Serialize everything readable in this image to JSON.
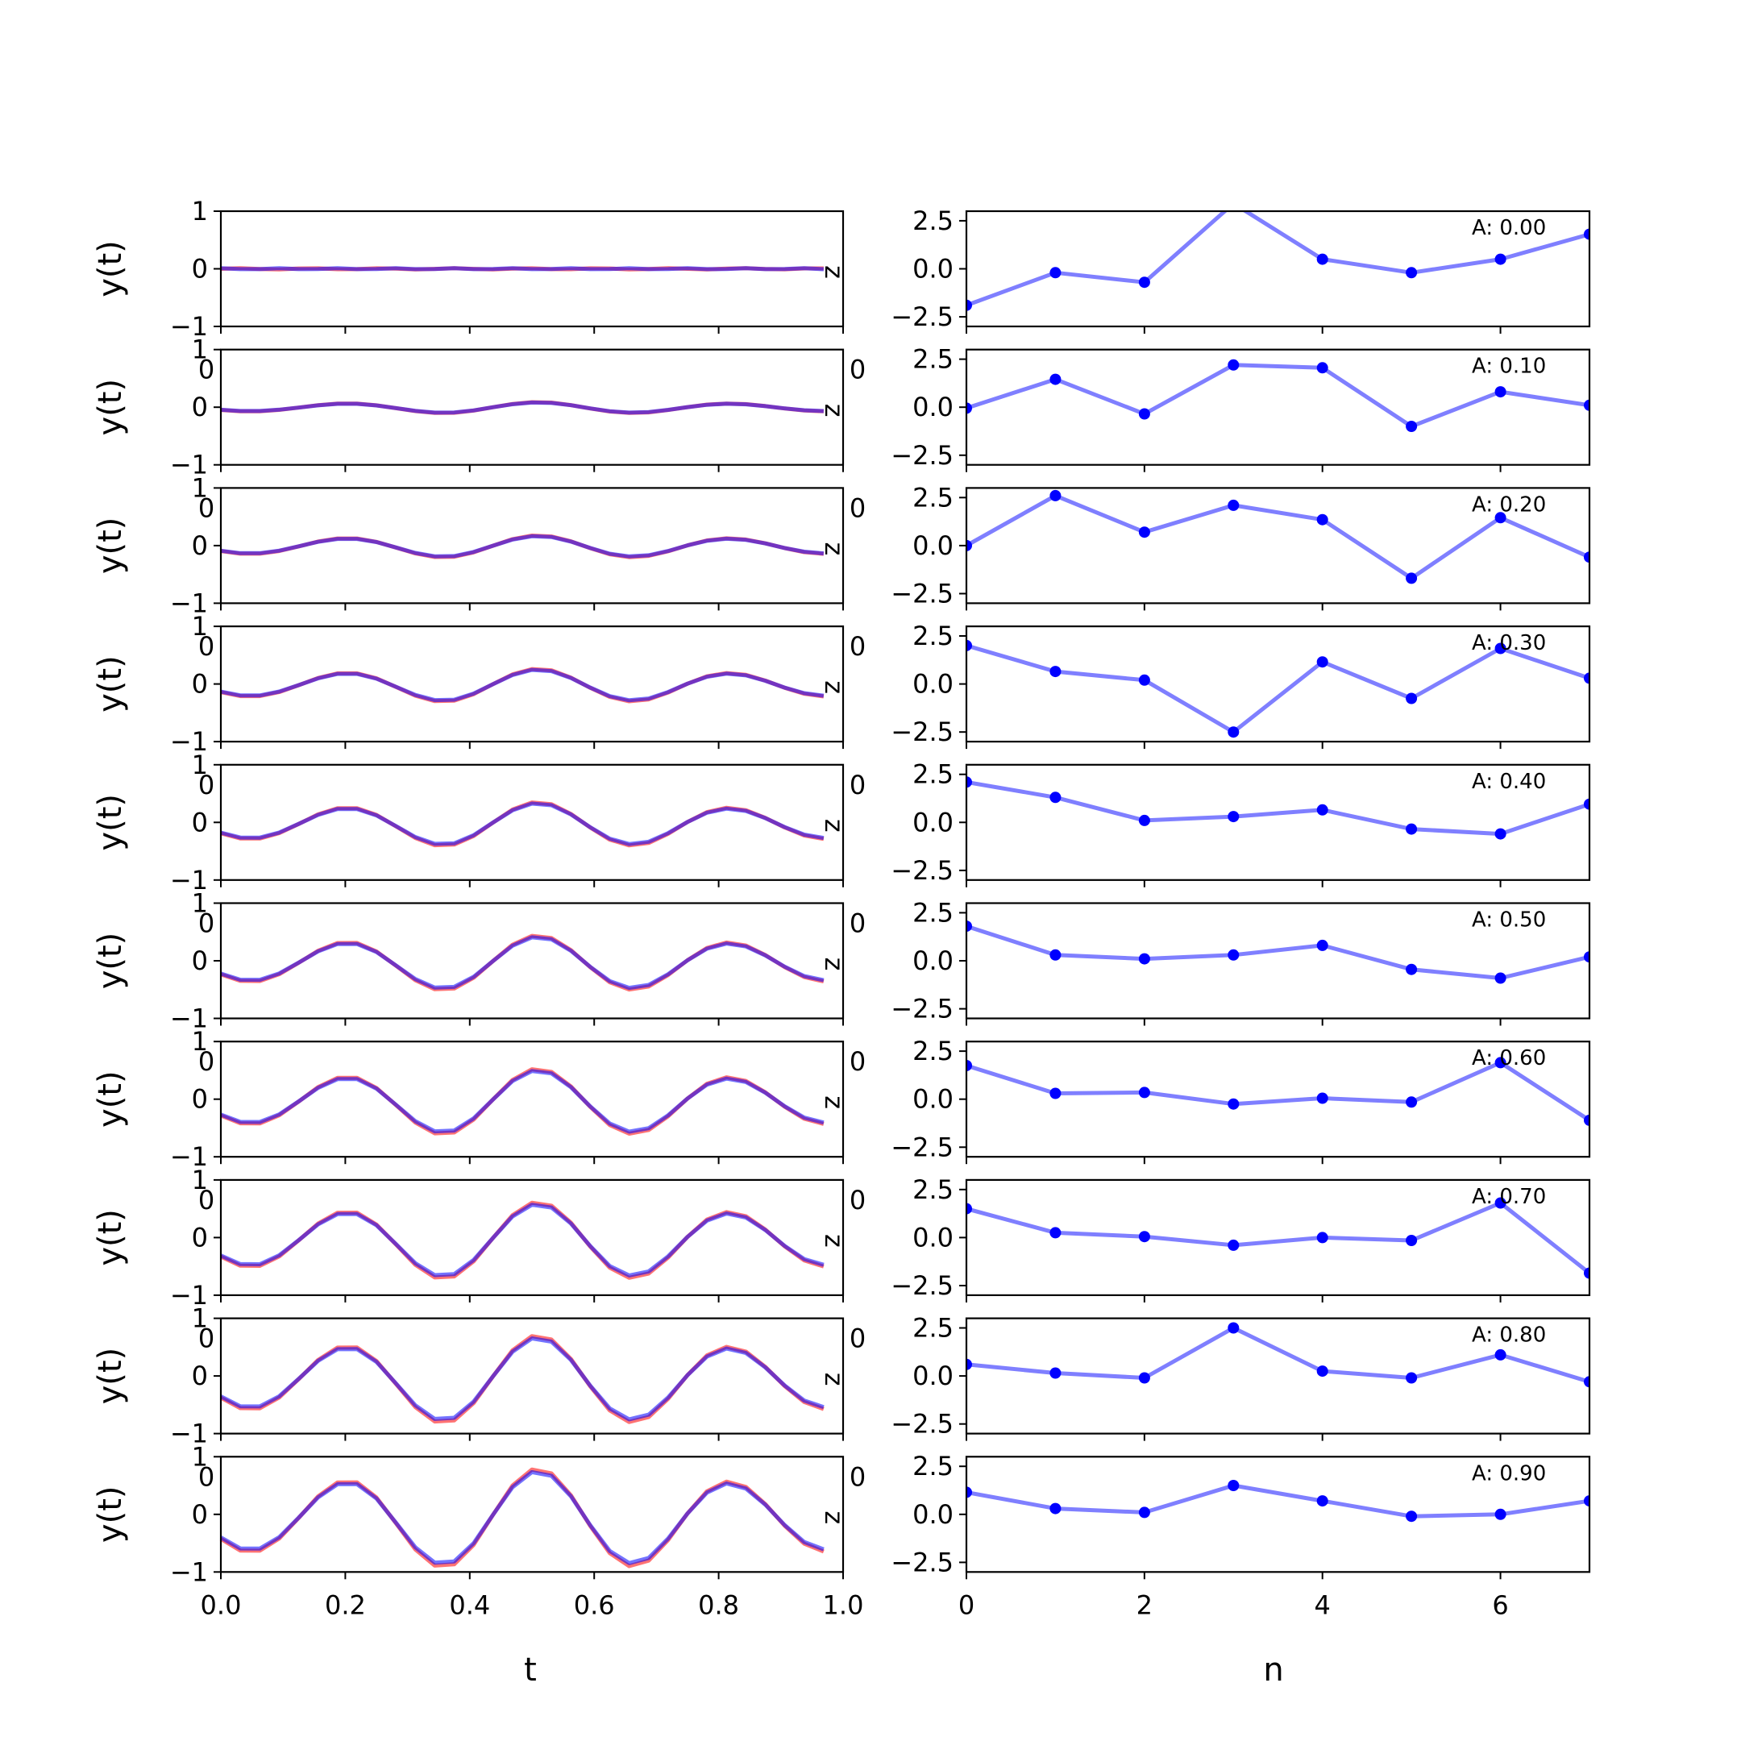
{
  "chart_data": {
    "type": "line",
    "layout": "10 rows x 2 columns of subplots",
    "left_column": {
      "xlabel": "t",
      "ylabel": "y(t)",
      "xlim": [
        0,
        1
      ],
      "ylim": [
        -1,
        1
      ],
      "x_ticks": [
        0.0,
        0.2,
        0.4,
        0.6,
        0.8,
        1.0
      ],
      "x_tick_labels": [
        "0.0",
        "0.2",
        "0.4",
        "0.6",
        "0.8",
        "1.0"
      ],
      "y_ticks": [
        -1,
        0,
        1
      ],
      "y_tick_labels": [
        "−1",
        "0",
        "1"
      ],
      "series_colors": [
        "#ff0000",
        "#0000ff"
      ],
      "side_glyph": "z",
      "stray_tick_text": "0",
      "signal_shape": "A * (0.3*sin(2*pi*3.3*t - 1.12) + 0.64*sin(2*pi*3.3*t)^...) approximated, 32 samples",
      "panels": [
        {
          "A": 0.0
        },
        {
          "A": 0.1
        },
        {
          "A": 0.2
        },
        {
          "A": 0.3
        },
        {
          "A": 0.4
        },
        {
          "A": 0.5
        },
        {
          "A": 0.6
        },
        {
          "A": 0.7
        },
        {
          "A": 0.8
        },
        {
          "A": 0.9
        }
      ]
    },
    "right_column": {
      "xlabel": "n",
      "xlim": [
        0,
        7
      ],
      "ylim": [
        -3,
        3
      ],
      "x_ticks": [
        0,
        2,
        4,
        6
      ],
      "x_tick_labels": [
        "0",
        "2",
        "4",
        "6"
      ],
      "y_ticks": [
        2.5,
        0.0,
        -2.5
      ],
      "y_tick_labels": [
        "2.5",
        "0.0",
        "−2.5"
      ],
      "series_color": "#0000ff",
      "panels": [
        {
          "label": "A: 0.00",
          "values": [
            -1.9,
            -0.2,
            -0.7,
            3.4,
            0.5,
            -0.2,
            0.5,
            1.8
          ]
        },
        {
          "label": "A: 0.10",
          "values": [
            -0.05,
            1.45,
            -0.35,
            2.2,
            2.05,
            -1.0,
            0.8,
            0.1
          ]
        },
        {
          "label": "A: 0.20",
          "values": [
            0.0,
            2.6,
            0.7,
            2.1,
            1.35,
            -1.7,
            1.45,
            -0.6
          ]
        },
        {
          "label": "A: 0.30",
          "values": [
            2.0,
            0.65,
            0.2,
            -2.5,
            1.15,
            -0.75,
            1.85,
            0.3
          ]
        },
        {
          "label": "A: 0.40",
          "values": [
            2.1,
            1.3,
            0.1,
            0.3,
            0.65,
            -0.35,
            -0.6,
            0.95
          ]
        },
        {
          "label": "A: 0.50",
          "values": [
            1.8,
            0.3,
            0.1,
            0.3,
            0.8,
            -0.45,
            -0.9,
            0.2
          ]
        },
        {
          "label": "A: 0.60",
          "values": [
            1.75,
            0.3,
            0.35,
            -0.25,
            0.05,
            -0.15,
            1.9,
            -1.1
          ]
        },
        {
          "label": "A: 0.70",
          "values": [
            1.5,
            0.25,
            0.05,
            -0.4,
            0.0,
            -0.15,
            1.8,
            -1.85
          ]
        },
        {
          "label": "A: 0.80",
          "values": [
            0.6,
            0.15,
            -0.1,
            2.5,
            0.25,
            -0.1,
            1.1,
            -0.3
          ]
        },
        {
          "label": "A: 0.90",
          "values": [
            1.15,
            0.3,
            0.1,
            1.5,
            0.7,
            -0.1,
            0.0,
            0.7
          ]
        }
      ]
    }
  }
}
